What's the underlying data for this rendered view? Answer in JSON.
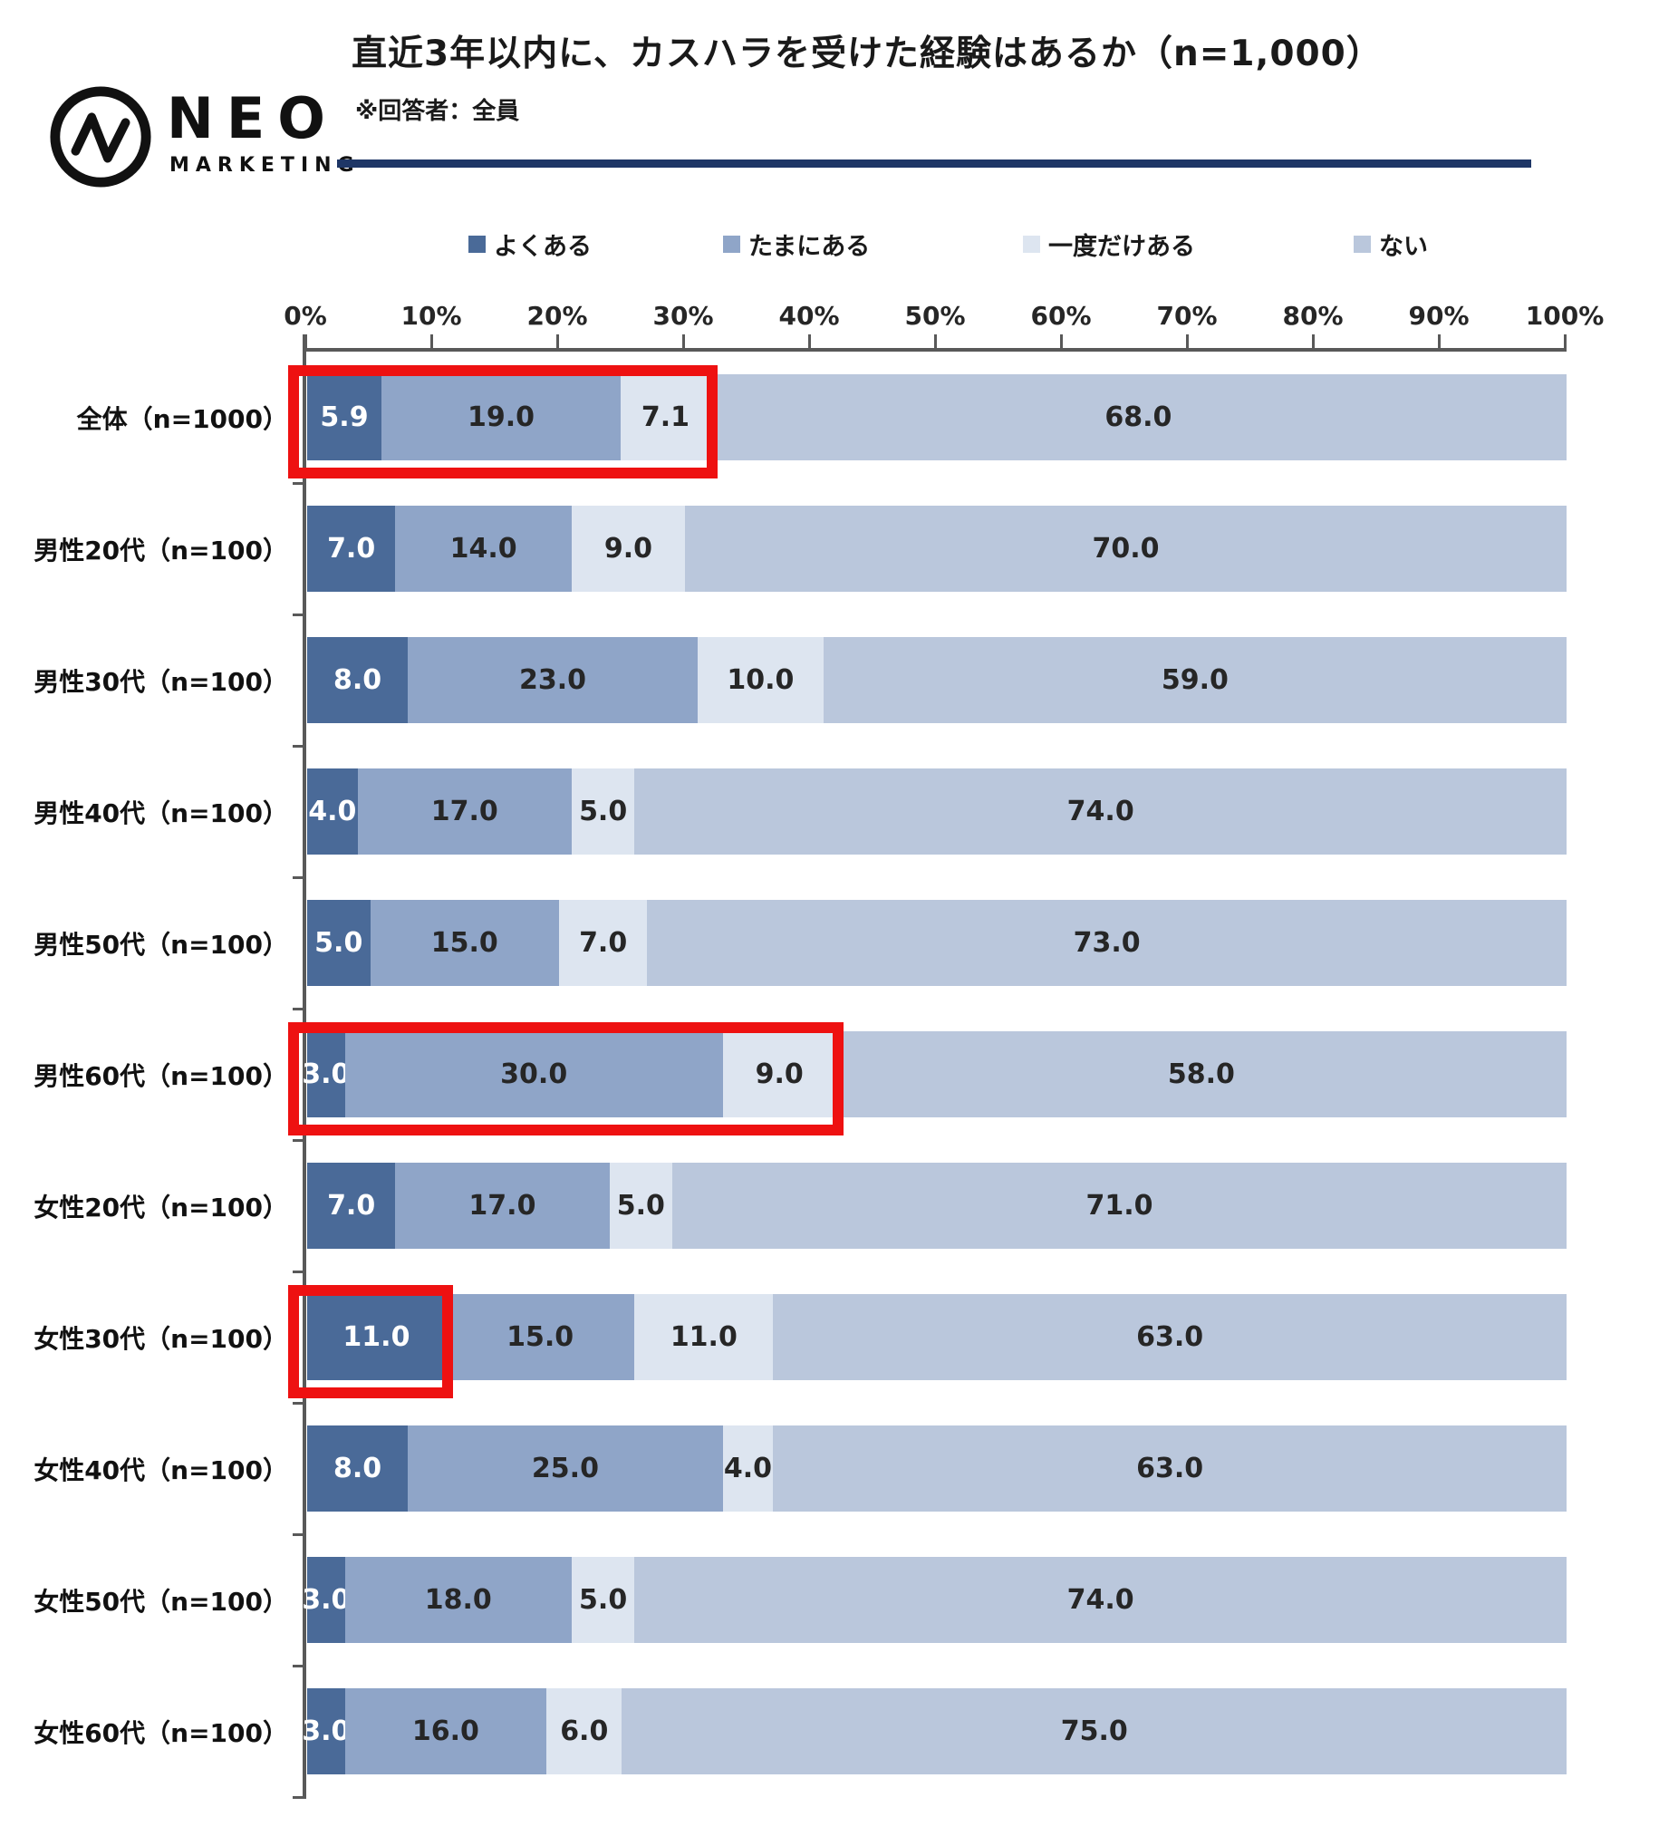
{
  "header": {
    "logo_word": "NEO",
    "logo_sub": "MARKETING",
    "title": "直近3年以内に、カスハラを受けた経験はあるか（n=1,000）",
    "note": "※回答者：全員",
    "rule_color": "#1e3666"
  },
  "chart_data": {
    "type": "bar",
    "stacked": true,
    "orientation": "horizontal",
    "unit": "%",
    "xlim": [
      0,
      100
    ],
    "x_ticks": [
      "0%",
      "10%",
      "20%",
      "30%",
      "40%",
      "50%",
      "60%",
      "70%",
      "80%",
      "90%",
      "100%"
    ],
    "grid": false,
    "legend_position": "top",
    "series_names": [
      "よくある",
      "たまにある",
      "一度だけある",
      "ない"
    ],
    "series_colors": [
      "#4a6a98",
      "#8fa5c8",
      "#dde5f0",
      "#bac7dc"
    ],
    "value_text_colors": [
      "#ffffff",
      "#262626",
      "#262626",
      "#262626"
    ],
    "categories": [
      "全体（n=1000）",
      "男性20代（n=100）",
      "男性30代（n=100）",
      "男性40代（n=100）",
      "男性50代（n=100）",
      "男性60代（n=100）",
      "女性20代（n=100）",
      "女性30代（n=100）",
      "女性40代（n=100）",
      "女性50代（n=100）",
      "女性60代（n=100）"
    ],
    "rows": [
      [
        5.9,
        19.0,
        7.1,
        68.0
      ],
      [
        7.0,
        14.0,
        9.0,
        70.0
      ],
      [
        8.0,
        23.0,
        10.0,
        59.0
      ],
      [
        4.0,
        17.0,
        5.0,
        74.0
      ],
      [
        5.0,
        15.0,
        7.0,
        73.0
      ],
      [
        3.0,
        30.0,
        9.0,
        58.0
      ],
      [
        7.0,
        17.0,
        5.0,
        71.0
      ],
      [
        11.0,
        15.0,
        11.0,
        63.0
      ],
      [
        8.0,
        25.0,
        4.0,
        63.0
      ],
      [
        3.0,
        18.0,
        5.0,
        74.0
      ],
      [
        3.0,
        16.0,
        6.0,
        75.0
      ]
    ],
    "highlights": [
      {
        "row": 0,
        "start_pct": 0,
        "end_pct": 32.0
      },
      {
        "row": 5,
        "start_pct": 0,
        "end_pct": 42.0
      },
      {
        "row": 7,
        "start_pct": 0,
        "end_pct": 11.0
      }
    ],
    "highlight_color": "#ee1111",
    "legend_x": [
      517,
      798,
      1129,
      1494
    ]
  }
}
